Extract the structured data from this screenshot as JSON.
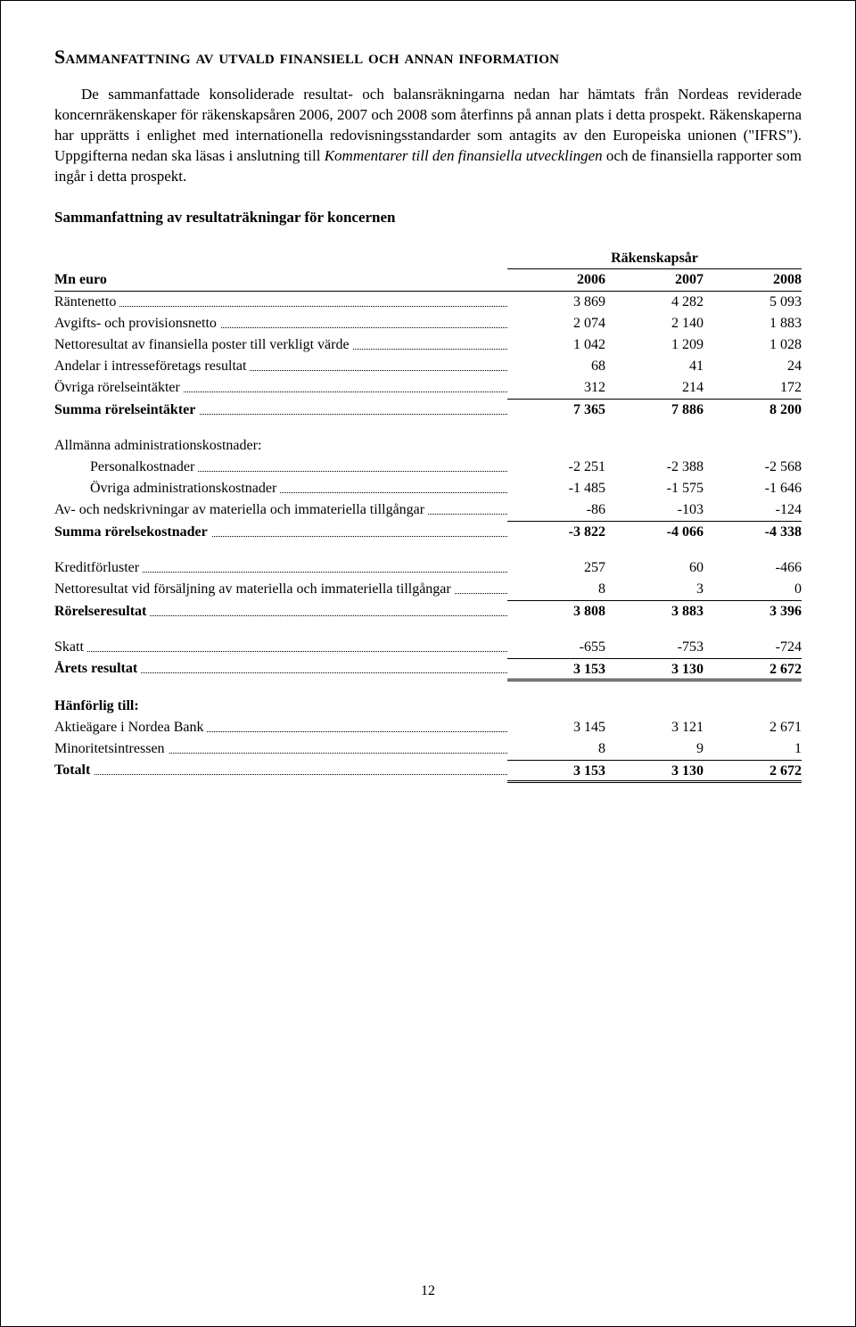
{
  "title": "Sammanfattning av utvald finansiell och annan information",
  "paragraph_parts": {
    "p1": "De sammanfattade konsoliderade resultat- och balansräkningarna nedan har hämtats från Nordeas reviderade koncernräkenskaper för räkenskapsåren 2006, 2007 och 2008 som återfinns på annan plats i detta prospekt. Räkenskaperna har upprätts i enlighet med internationella redovisningsstandarder som antagits av den Europeiska unionen (\"IFRS\"). Uppgifterna nedan ska läsas i anslutning till ",
    "p1_italic": "Kommentarer till den finansiella utvecklingen",
    "p1_tail": " och de finansiella rapporter som ingår i detta prospekt."
  },
  "subheading": "Sammanfattning av resultaträkningar för koncernen",
  "table": {
    "spanner": "Räkenskapsår",
    "row_header": "Mn euro",
    "years": [
      "2006",
      "2007",
      "2008"
    ],
    "rows": [
      {
        "label": "Räntenetto",
        "vals": [
          "3 869",
          "4 282",
          "5 093"
        ],
        "style": "dots"
      },
      {
        "label": "Avgifts- och provisionsnetto",
        "vals": [
          "2 074",
          "2 140",
          "1 883"
        ],
        "style": "dots"
      },
      {
        "label": "Nettoresultat av finansiella poster till verkligt värde",
        "vals": [
          "1 042",
          "1 209",
          "1 028"
        ],
        "style": "dots"
      },
      {
        "label": "Andelar i intresseföretags resultat",
        "vals": [
          "68",
          "41",
          "24"
        ],
        "style": "dots"
      },
      {
        "label": "Övriga rörelseintäkter",
        "vals": [
          "312",
          "214",
          "172"
        ],
        "style": "dots underline"
      },
      {
        "label": "Summa rörelseintäkter",
        "vals": [
          "7 365",
          "7 886",
          "8 200"
        ],
        "style": "dots bold"
      },
      {
        "label": "",
        "vals": [
          "",
          "",
          ""
        ],
        "style": "spacer"
      },
      {
        "label": "Allmänna administrationskostnader:",
        "vals": [
          "",
          "",
          ""
        ],
        "style": "plain"
      },
      {
        "label": "Personalkostnader",
        "vals": [
          "-2 251",
          "-2 388",
          "-2 568"
        ],
        "style": "dots indent"
      },
      {
        "label": "Övriga administrationskostnader",
        "vals": [
          "-1 485",
          "-1 575",
          "-1 646"
        ],
        "style": "dots indent"
      },
      {
        "label": "Av- och nedskrivningar av materiella och immateriella tillgångar",
        "vals": [
          "-86",
          "-103",
          "-124"
        ],
        "style": "dots underline"
      },
      {
        "label": "Summa rörelsekostnader",
        "vals": [
          "-3 822",
          "-4 066",
          "-4 338"
        ],
        "style": "dots bold"
      },
      {
        "label": "",
        "vals": [
          "",
          "",
          ""
        ],
        "style": "spacer"
      },
      {
        "label": "Kreditförluster",
        "vals": [
          "257",
          "60",
          "-466"
        ],
        "style": "dots"
      },
      {
        "label": "Nettoresultat vid försäljning av materiella och immateriella tillgångar",
        "vals": [
          "8",
          "3",
          "0"
        ],
        "style": "dots underline"
      },
      {
        "label": "Rörelseresultat",
        "vals": [
          "3 808",
          "3 883",
          "3 396"
        ],
        "style": "dots bold"
      },
      {
        "label": "",
        "vals": [
          "",
          "",
          ""
        ],
        "style": "spacer"
      },
      {
        "label": "Skatt",
        "vals": [
          "-655",
          "-753",
          "-724"
        ],
        "style": "dots underline"
      },
      {
        "label": "Årets resultat",
        "vals": [
          "3 153",
          "3 130",
          "2 672"
        ],
        "style": "dots bold double-under"
      },
      {
        "label": "",
        "vals": [
          "",
          "",
          ""
        ],
        "style": "spacer"
      },
      {
        "label": "Hänförlig till:",
        "vals": [
          "",
          "",
          ""
        ],
        "style": "plain bold"
      },
      {
        "label": "Aktieägare i Nordea Bank",
        "vals": [
          "3 145",
          "3 121",
          "2 671"
        ],
        "style": "dots"
      },
      {
        "label": "Minoritetsintressen",
        "vals": [
          "8",
          "9",
          "1"
        ],
        "style": "dots underline"
      },
      {
        "label": "Totalt",
        "vals": [
          "3 153",
          "3 130",
          "2 672"
        ],
        "style": "dots bold double-under"
      }
    ]
  },
  "page_number": "12"
}
